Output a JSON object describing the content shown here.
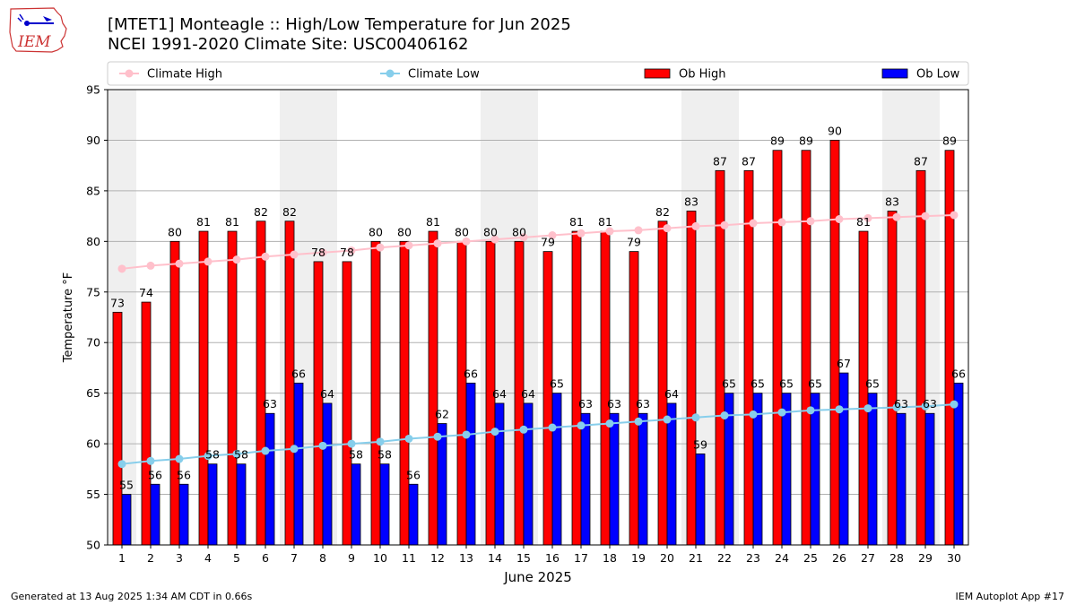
{
  "header": {
    "logo_text": "IEM",
    "title": "[MTET1] Monteagle :: High/Low Temperature for Jun 2025",
    "subtitle": "NCEI 1991-2020 Climate Site: USC00406162"
  },
  "footer": {
    "left": "Generated at 13 Aug 2025 1:34 AM CDT in 0.66s",
    "right": "IEM Autoplot App #17"
  },
  "chart_data": {
    "type": "bar",
    "xlabel": "June 2025",
    "ylabel": "Temperature °F",
    "ylim": [
      50,
      95
    ],
    "yticks": [
      50,
      55,
      60,
      65,
      70,
      75,
      80,
      85,
      90,
      95
    ],
    "grid": "horizontal",
    "legend_placement": "top",
    "weekend_shading": [
      [
        1,
        1
      ],
      [
        7,
        8
      ],
      [
        14,
        15
      ],
      [
        21,
        22
      ],
      [
        28,
        29
      ]
    ],
    "categories": [
      "1",
      "2",
      "3",
      "4",
      "5",
      "6",
      "7",
      "8",
      "9",
      "10",
      "11",
      "12",
      "13",
      "14",
      "15",
      "16",
      "17",
      "18",
      "19",
      "20",
      "21",
      "22",
      "23",
      "24",
      "25",
      "26",
      "27",
      "28",
      "29",
      "30"
    ],
    "series": [
      {
        "name": "Climate High",
        "kind": "line",
        "color": "#ffc0cb",
        "values": [
          77.3,
          77.6,
          77.8,
          78.0,
          78.2,
          78.5,
          78.7,
          78.9,
          79.1,
          79.4,
          79.6,
          79.8,
          80.0,
          80.2,
          80.4,
          80.6,
          80.8,
          81.0,
          81.1,
          81.3,
          81.5,
          81.6,
          81.8,
          81.9,
          82.0,
          82.2,
          82.3,
          82.4,
          82.5,
          82.6
        ]
      },
      {
        "name": "Climate Low",
        "kind": "line",
        "color": "#87ceeb",
        "values": [
          58.0,
          58.3,
          58.5,
          58.8,
          59.0,
          59.3,
          59.5,
          59.8,
          60.0,
          60.2,
          60.5,
          60.7,
          60.9,
          61.2,
          61.4,
          61.6,
          61.8,
          62.0,
          62.2,
          62.4,
          62.6,
          62.8,
          62.9,
          63.1,
          63.3,
          63.4,
          63.5,
          63.6,
          63.7,
          63.9
        ]
      },
      {
        "name": "Ob High",
        "kind": "bar",
        "color": "#ff0000",
        "values": [
          73,
          74,
          80,
          81,
          81,
          82,
          82,
          78,
          78,
          80,
          80,
          81,
          80,
          80,
          80,
          79,
          81,
          81,
          79,
          82,
          83,
          87,
          87,
          89,
          89,
          90,
          81,
          83,
          87,
          89
        ]
      },
      {
        "name": "Ob Low",
        "kind": "bar",
        "color": "#0000ff",
        "values": [
          55,
          56,
          56,
          58,
          58,
          63,
          66,
          64,
          58,
          58,
          56,
          62,
          66,
          64,
          64,
          65,
          63,
          63,
          63,
          64,
          59,
          65,
          65,
          65,
          65,
          67,
          65,
          63,
          63,
          66
        ]
      }
    ]
  }
}
